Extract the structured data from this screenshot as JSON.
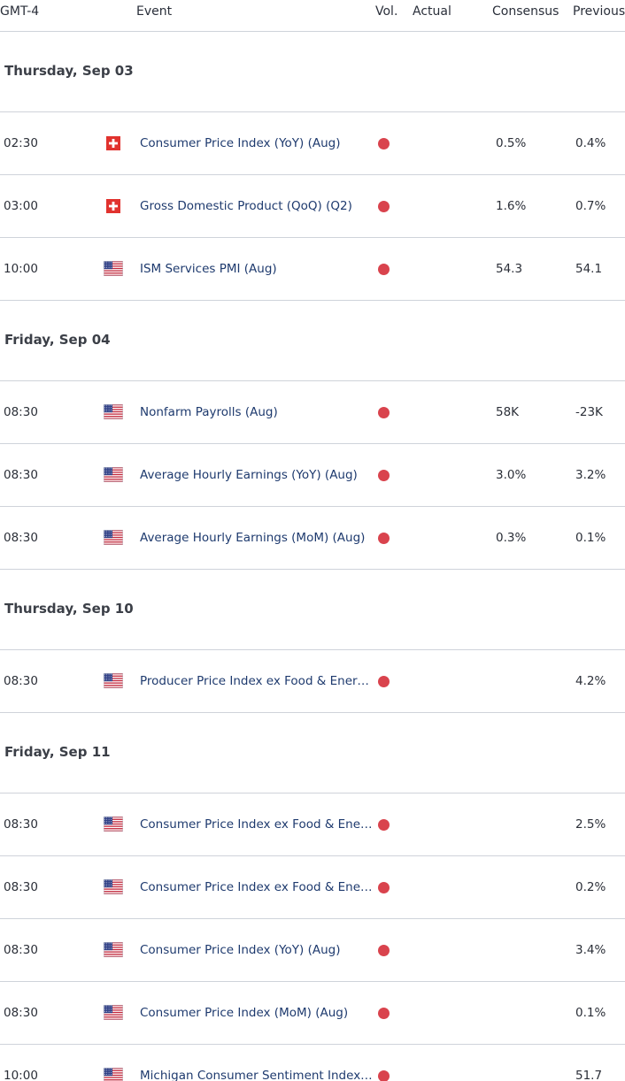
{
  "header": {
    "timezone": "GMT-4",
    "event": "Event",
    "vol": "Vol.",
    "actual": "Actual",
    "consensus": "Consensus",
    "previous": "Previous"
  },
  "colors": {
    "volatility_high": "#d9434d",
    "event_text": "#1e3a6e",
    "divider": "#cfd3da"
  },
  "days": [
    {
      "date": "Thursday, Sep 03",
      "events": [
        {
          "time": "02:30",
          "flag": "switzerland-flag-icon",
          "country": "CH",
          "event": "Consumer Price Index (YoY) (Aug)",
          "actual": "",
          "consensus": "0.5%",
          "previous": "0.4%"
        },
        {
          "time": "03:00",
          "flag": "switzerland-flag-icon",
          "country": "CH",
          "event": "Gross Domestic Product (QoQ) (Q2)",
          "actual": "",
          "consensus": "1.6%",
          "previous": "0.7%"
        },
        {
          "time": "10:00",
          "flag": "us-flag-icon",
          "country": "US",
          "event": "ISM Services PMI (Aug)",
          "actual": "",
          "consensus": "54.3",
          "previous": "54.1"
        }
      ]
    },
    {
      "date": "Friday, Sep 04",
      "events": [
        {
          "time": "08:30",
          "flag": "us-flag-icon",
          "country": "US",
          "event": "Nonfarm Payrolls (Aug)",
          "actual": "",
          "consensus": "58K",
          "previous": "-23K"
        },
        {
          "time": "08:30",
          "flag": "us-flag-icon",
          "country": "US",
          "event": "Average Hourly Earnings (YoY) (Aug)",
          "actual": "",
          "consensus": "3.0%",
          "previous": "3.2%"
        },
        {
          "time": "08:30",
          "flag": "us-flag-icon",
          "country": "US",
          "event": "Average Hourly Earnings (MoM) (Aug)",
          "actual": "",
          "consensus": "0.3%",
          "previous": "0.1%"
        }
      ]
    },
    {
      "date": "Thursday, Sep 10",
      "events": [
        {
          "time": "08:30",
          "flag": "us-flag-icon",
          "country": "US",
          "event": "Producer Price Index ex Food & Energ…",
          "actual": "",
          "consensus": "",
          "previous": "4.2%"
        }
      ]
    },
    {
      "date": "Friday, Sep 11",
      "events": [
        {
          "time": "08:30",
          "flag": "us-flag-icon",
          "country": "US",
          "event": "Consumer Price Index ex Food & Ener…",
          "actual": "",
          "consensus": "",
          "previous": "2.5%"
        },
        {
          "time": "08:30",
          "flag": "us-flag-icon",
          "country": "US",
          "event": "Consumer Price Index ex Food & Ener…",
          "actual": "",
          "consensus": "",
          "previous": "0.2%"
        },
        {
          "time": "08:30",
          "flag": "us-flag-icon",
          "country": "US",
          "event": "Consumer Price Index (YoY) (Aug)",
          "actual": "",
          "consensus": "",
          "previous": "3.4%"
        },
        {
          "time": "08:30",
          "flag": "us-flag-icon",
          "country": "US",
          "event": "Consumer Price Index (MoM) (Aug)",
          "actual": "",
          "consensus": "",
          "previous": "0.1%"
        },
        {
          "time": "10:00",
          "flag": "us-flag-icon",
          "country": "US",
          "event": "Michigan Consumer Sentiment Index…",
          "actual": "",
          "consensus": "",
          "previous": "51.7"
        }
      ]
    }
  ]
}
